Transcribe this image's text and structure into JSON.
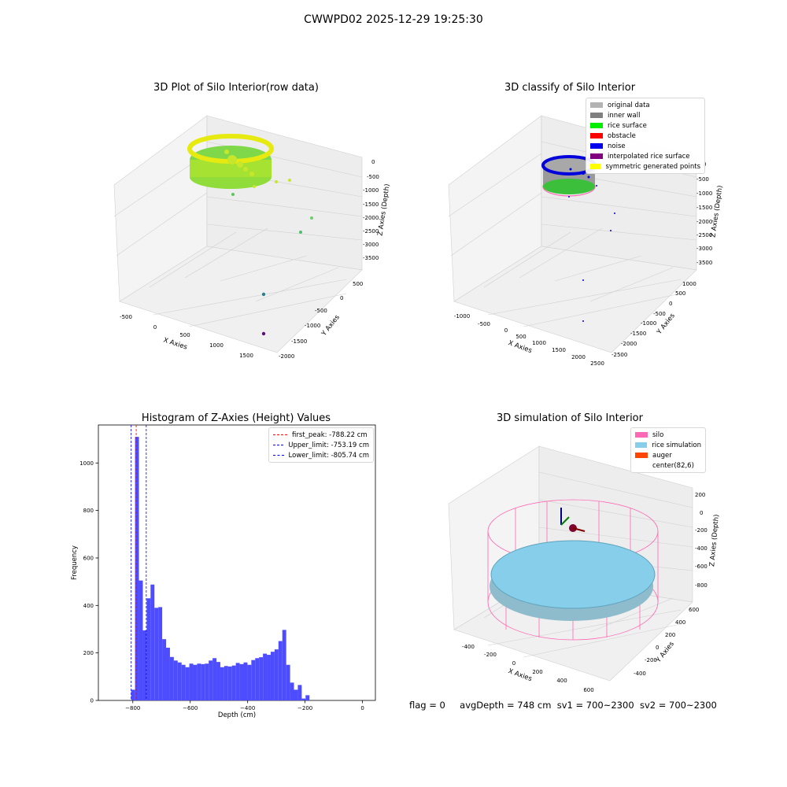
{
  "suptitle": "CWWPD02 2025-12-29 19:25:30",
  "panels": {
    "raw": {
      "title": "3D Plot of Silo Interior(row data)",
      "xlabel": "X Axies",
      "ylabel": "Y Axies",
      "zlabel": "Z Axies (Depth)",
      "xticks": [
        "-500",
        "0",
        "500",
        "1000",
        "1500"
      ],
      "yticks": [
        "500",
        "0",
        "-500",
        "-1000",
        "-1500",
        "-2000"
      ],
      "zticks": [
        "0",
        "-500",
        "-1000",
        "-1500",
        "-2000",
        "-2500",
        "-3000",
        "-3500"
      ]
    },
    "classify": {
      "title": "3D classify of Silo Interior",
      "xlabel": "X Axies",
      "ylabel": "Y Axies",
      "zlabel": "Z Axies (Depth)",
      "xticks": [
        "-1000",
        "-500",
        "0",
        "500",
        "1000",
        "1500",
        "2000",
        "2500"
      ],
      "yticks": [
        "1000",
        "500",
        "0",
        "-500",
        "-1000",
        "-1500",
        "-2000",
        "-2500"
      ],
      "zticks": [
        "0",
        "-500",
        "-1000",
        "-1500",
        "-2000",
        "-2500",
        "-3000",
        "-3500"
      ],
      "legend": [
        {
          "label": "original data",
          "color": "#b3b3b3"
        },
        {
          "label": "inner wall",
          "color": "#808080"
        },
        {
          "label": "rice surface",
          "color": "#00ee00"
        },
        {
          "label": "obstacle",
          "color": "#ff0000"
        },
        {
          "label": "noise",
          "color": "#0000ee"
        },
        {
          "label": "interpolated rice surface",
          "color": "#800080"
        },
        {
          "label": "symmetric generated points",
          "color": "#ffff00"
        }
      ]
    },
    "simulation": {
      "title": "3D simulation of Silo Interior",
      "xlabel": "X Axies",
      "ylabel": "Y Axies",
      "zlabel": "Z Axies (Depth)",
      "xticks": [
        "-400",
        "-200",
        "0",
        "200",
        "400",
        "600"
      ],
      "yticks": [
        "600",
        "400",
        "200",
        "0",
        "-200",
        "-400"
      ],
      "zticks": [
        "200",
        "0",
        "-200",
        "-400",
        "-600",
        "-800"
      ],
      "legend": [
        {
          "label": "silo",
          "color": "#ff69b4"
        },
        {
          "label": "rice simulation",
          "color": "#87ceeb"
        },
        {
          "label": "auger",
          "color": "#ff4500"
        },
        {
          "label": "center(82,6)",
          "color": "none"
        }
      ]
    }
  },
  "chart_data": {
    "type": "bar",
    "title": "Histogram of Z-Axies (Height) Values",
    "xlabel": "Depth (cm)",
    "ylabel": "Frequency",
    "xlim": [
      -920,
      45
    ],
    "ylim": [
      0,
      1160
    ],
    "bin_width": 13.5,
    "xticks": [
      -800,
      -600,
      -400,
      -200,
      0
    ],
    "yticks": [
      0,
      200,
      400,
      600,
      800,
      1000
    ],
    "bars": [
      {
        "x": -805.7,
        "value": 45
      },
      {
        "x": -792.2,
        "value": 1110
      },
      {
        "x": -778.7,
        "value": 505
      },
      {
        "x": -765.2,
        "value": 295
      },
      {
        "x": -751.7,
        "value": 430
      },
      {
        "x": -738.2,
        "value": 488
      },
      {
        "x": -724.7,
        "value": 390
      },
      {
        "x": -711.2,
        "value": 393
      },
      {
        "x": -697.7,
        "value": 258
      },
      {
        "x": -684.2,
        "value": 222
      },
      {
        "x": -670.7,
        "value": 183
      },
      {
        "x": -657.2,
        "value": 168
      },
      {
        "x": -643.7,
        "value": 160
      },
      {
        "x": -630.2,
        "value": 150
      },
      {
        "x": -616.7,
        "value": 140
      },
      {
        "x": -603.2,
        "value": 155
      },
      {
        "x": -589.7,
        "value": 150
      },
      {
        "x": -576.2,
        "value": 155
      },
      {
        "x": -562.7,
        "value": 153
      },
      {
        "x": -549.2,
        "value": 155
      },
      {
        "x": -535.7,
        "value": 168
      },
      {
        "x": -522.2,
        "value": 178
      },
      {
        "x": -508.7,
        "value": 162
      },
      {
        "x": -495.2,
        "value": 140
      },
      {
        "x": -481.7,
        "value": 145
      },
      {
        "x": -468.2,
        "value": 143
      },
      {
        "x": -454.7,
        "value": 147
      },
      {
        "x": -441.2,
        "value": 158
      },
      {
        "x": -427.7,
        "value": 153
      },
      {
        "x": -414.2,
        "value": 160
      },
      {
        "x": -400.7,
        "value": 150
      },
      {
        "x": -387.2,
        "value": 170
      },
      {
        "x": -373.7,
        "value": 178
      },
      {
        "x": -360.2,
        "value": 182
      },
      {
        "x": -346.7,
        "value": 197
      },
      {
        "x": -333.2,
        "value": 192
      },
      {
        "x": -319.7,
        "value": 205
      },
      {
        "x": -306.2,
        "value": 215
      },
      {
        "x": -292.7,
        "value": 250
      },
      {
        "x": -279.2,
        "value": 297
      },
      {
        "x": -265.7,
        "value": 150
      },
      {
        "x": -252.2,
        "value": 75
      },
      {
        "x": -238.7,
        "value": 45
      },
      {
        "x": -225.2,
        "value": 65
      },
      {
        "x": -211.7,
        "value": 8
      },
      {
        "x": -198.2,
        "value": 22
      }
    ],
    "vlines": [
      {
        "label": "first_peak: -788.22 cm",
        "value": -788.22,
        "color": "#ff0000"
      },
      {
        "label": "Upper_limit: -753.19 cm",
        "value": -753.19,
        "color": "#0000ff"
      },
      {
        "label": "Lower_limit: -805.74 cm",
        "value": -805.74,
        "color": "#0000ff"
      }
    ],
    "bar_color": "#4d4dff"
  },
  "footer": {
    "flag": "flag = 0",
    "avg_depth": "avgDepth = 748 cm",
    "sv1": "sv1 = 700~2300",
    "sv2": "sv2 = 700~2300"
  }
}
